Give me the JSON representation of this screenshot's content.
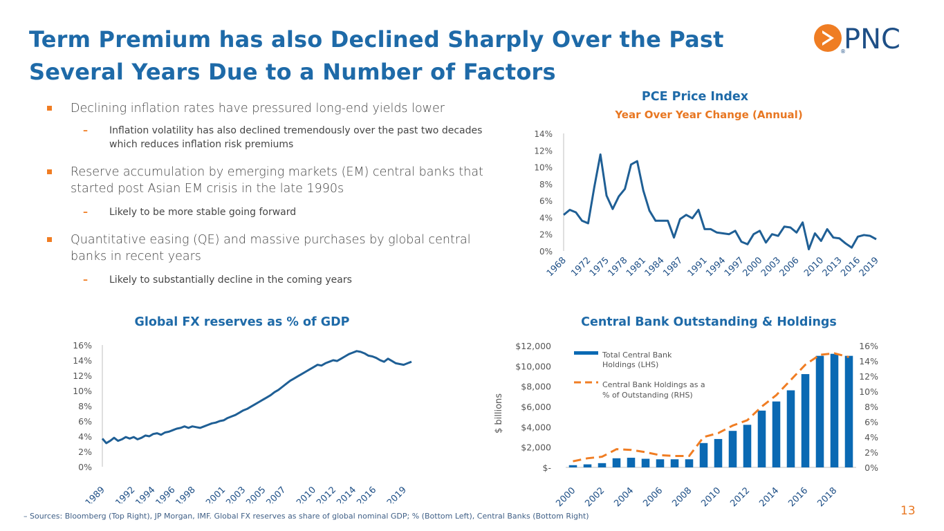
{
  "slide": {
    "title_line1": "Term Premium has also Declined Sharply Over the Past",
    "title_line2": "Several Years Due to a Number of Factors",
    "logo_text": "PNC",
    "logo_reg": "®",
    "source": "– Sources: Bloomberg (Top Right), JP Morgan, IMF. Global FX reserves as share of global nominal GDP; % (Bottom Left), Central Banks (Bottom Right)",
    "page_number": "13"
  },
  "colors": {
    "title_blue": "#1e6aa8",
    "accent_orange": "#e87722",
    "bar_blue": "#0a69b3",
    "line_blue": "#1f5f95"
  },
  "bullets": [
    {
      "text": "Declining inflation rates have pressured long-end yields lower",
      "sub": "Inflation volatility has also declined tremendously over the past two decades which reduces inflation risk premiums"
    },
    {
      "text": "Reserve accumulation by emerging markets (EM) central banks that started post Asian EM crisis in the late 1990s",
      "sub": "Likely to be more stable going forward"
    },
    {
      "text": "Quantitative easing (QE) and massive purchases by global central banks in recent years",
      "sub": "Likely to substantially decline in the coming years"
    }
  ],
  "chart_data": [
    {
      "type": "line",
      "title": "PCE Price Index",
      "subtitle": "Year Over Year Change (Annual)",
      "ylim": [
        0,
        14
      ],
      "y_ticks": [
        "0%",
        "2%",
        "4%",
        "6%",
        "8%",
        "10%",
        "12%",
        "14%"
      ],
      "x_ticks": [
        "1968",
        "1972",
        "1975",
        "1978",
        "1981",
        "1984",
        "1987",
        "1991",
        "1994",
        "1997",
        "2000",
        "2003",
        "2006",
        "2010",
        "2013",
        "2016",
        "2019"
      ],
      "x": [
        1968,
        1969,
        1970,
        1971,
        1972,
        1973,
        1974,
        1975,
        1976,
        1977,
        1978,
        1979,
        1980,
        1981,
        1982,
        1983,
        1984,
        1985,
        1986,
        1987,
        1988,
        1989,
        1990,
        1991,
        1992,
        1993,
        1994,
        1995,
        1996,
        1997,
        1998,
        1999,
        2000,
        2001,
        2002,
        2003,
        2004,
        2005,
        2006,
        2007,
        2008,
        2009,
        2010,
        2011,
        2012,
        2013,
        2014,
        2015,
        2016,
        2017,
        2018,
        2019
      ],
      "values": [
        4.3,
        4.9,
        4.6,
        3.6,
        3.3,
        7.6,
        11.5,
        6.6,
        5.0,
        6.5,
        7.4,
        10.3,
        10.7,
        7.2,
        4.8,
        3.6,
        3.6,
        3.6,
        1.6,
        3.8,
        4.3,
        3.9,
        4.9,
        2.6,
        2.6,
        2.2,
        2.1,
        2.0,
        2.4,
        1.1,
        0.8,
        2.0,
        2.4,
        1.0,
        2.0,
        1.8,
        2.9,
        2.8,
        2.2,
        3.4,
        0.2,
        2.1,
        1.2,
        2.6,
        1.6,
        1.5,
        0.9,
        0.4,
        1.7,
        1.9,
        1.8,
        1.4
      ]
    },
    {
      "type": "line",
      "title": "Global FX reserves as % of GDP",
      "ylim": [
        0,
        16
      ],
      "y_ticks": [
        "0%",
        "2%",
        "4%",
        "6%",
        "8%",
        "10%",
        "12%",
        "14%",
        "16%"
      ],
      "x_ticks": [
        "1989",
        "1992",
        "1994",
        "1996",
        "1998",
        "2001",
        "2003",
        "2005",
        "2007",
        "2010",
        "2012",
        "2014",
        "2016",
        "2019"
      ],
      "x_range": [
        1989.0,
        2019.75
      ],
      "values": [
        3.7,
        3.1,
        3.4,
        3.8,
        3.4,
        3.6,
        3.9,
        3.7,
        3.9,
        3.6,
        3.8,
        4.1,
        4.0,
        4.3,
        4.4,
        4.2,
        4.5,
        4.6,
        4.8,
        5.0,
        5.1,
        5.3,
        5.1,
        5.3,
        5.2,
        5.1,
        5.3,
        5.5,
        5.7,
        5.8,
        6.0,
        6.1,
        6.4,
        6.6,
        6.8,
        7.1,
        7.4,
        7.6,
        7.9,
        8.2,
        8.5,
        8.8,
        9.1,
        9.4,
        9.8,
        10.1,
        10.5,
        10.9,
        11.3,
        11.6,
        11.9,
        12.2,
        12.5,
        12.8,
        13.1,
        13.4,
        13.3,
        13.6,
        13.8,
        14.0,
        13.9,
        14.2,
        14.5,
        14.8,
        15.0,
        15.2,
        15.1,
        14.9,
        14.6,
        14.5,
        14.3,
        14.0,
        13.8,
        14.2,
        13.9,
        13.6,
        13.5,
        13.4,
        13.6,
        13.8
      ]
    },
    {
      "type": "bar",
      "title": "Central Bank Outstanding & Holdings",
      "ylabel": "$ billions",
      "categories": [
        "2000",
        "2001",
        "2002",
        "2003",
        "2004",
        "2005",
        "2006",
        "2007",
        "2008",
        "2009",
        "2010",
        "2011",
        "2012",
        "2013",
        "2014",
        "2015",
        "2016",
        "2017",
        "2018",
        "2019"
      ],
      "x_ticks": [
        "2000",
        "2002",
        "2004",
        "2006",
        "2008",
        "2010",
        "2012",
        "2014",
        "2016",
        "2018"
      ],
      "ylim": [
        0,
        12000
      ],
      "y_ticks_left": [
        "$-",
        "$2,000",
        "$4,000",
        "$6,000",
        "$8,000",
        "$10,000",
        "$12,000"
      ],
      "ylim_right": [
        0,
        16
      ],
      "y_ticks_right": [
        "0%",
        "2%",
        "4%",
        "6%",
        "8%",
        "10%",
        "12%",
        "14%",
        "16%"
      ],
      "series": [
        {
          "name": "Total Central Bank Holdings (LHS)",
          "type": "bar",
          "axis": "left",
          "values": [
            220,
            300,
            420,
            900,
            950,
            850,
            800,
            800,
            800,
            2400,
            2800,
            3600,
            4200,
            5600,
            6500,
            7600,
            9200,
            11000,
            11200,
            11000
          ]
        },
        {
          "name": "Central Bank Holdings as a % of Outstanding (RHS)",
          "type": "line",
          "style": "dashed",
          "axis": "right",
          "values": [
            0.8,
            1.2,
            1.4,
            2.4,
            2.3,
            2.0,
            1.6,
            1.5,
            1.5,
            4.0,
            4.5,
            5.5,
            6.2,
            8.0,
            9.5,
            11.5,
            13.5,
            14.8,
            15.0,
            14.5
          ]
        }
      ]
    }
  ]
}
